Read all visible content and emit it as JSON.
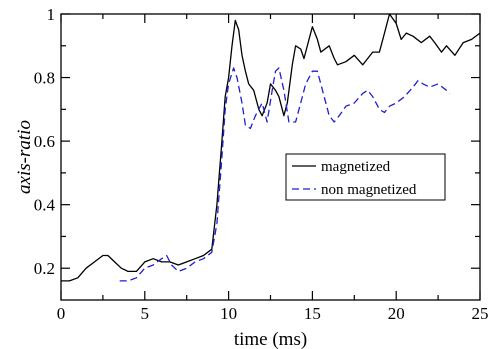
{
  "chart_data": {
    "type": "line",
    "xlabel": "time (ms)",
    "ylabel": "axis-ratio",
    "xlim": [
      0,
      25
    ],
    "ylim": [
      0.1,
      1.0
    ],
    "xticks": [
      0,
      5,
      10,
      15,
      20,
      25
    ],
    "yticks": [
      0.2,
      0.4,
      0.6,
      0.8,
      1
    ],
    "xtick_labels": [
      "0",
      "5",
      "10",
      "15",
      "20",
      "25"
    ],
    "ytick_labels": [
      "0.2",
      "0.4",
      "0.6",
      "0.8",
      "1"
    ],
    "grid": false,
    "legend_position": "center-right",
    "series": [
      {
        "name": "magnetized",
        "color": "#000000",
        "dash": "solid",
        "x": [
          0,
          0.5,
          1,
          1.5,
          2,
          2.5,
          2.8,
          3.2,
          3.6,
          4,
          4.5,
          5,
          5.5,
          6,
          6.5,
          7,
          7.5,
          8,
          8.5,
          9,
          9.3,
          9.6,
          9.8,
          10,
          10.2,
          10.4,
          10.6,
          10.8,
          11,
          11.2,
          11.5,
          11.8,
          12,
          12.3,
          12.5,
          12.8,
          13,
          13.3,
          13.5,
          13.8,
          14,
          14.3,
          14.5,
          14.8,
          15,
          15.3,
          15.5,
          16,
          16.3,
          16.5,
          17,
          17.5,
          18,
          18.3,
          18.6,
          19,
          19.3,
          19.6,
          20,
          20.3,
          20.6,
          21,
          21.5,
          22,
          22.3,
          22.7,
          23,
          23.5,
          24,
          24.5,
          25
        ],
        "y": [
          0.16,
          0.16,
          0.17,
          0.2,
          0.22,
          0.24,
          0.24,
          0.22,
          0.2,
          0.19,
          0.19,
          0.22,
          0.23,
          0.22,
          0.22,
          0.21,
          0.22,
          0.23,
          0.24,
          0.26,
          0.4,
          0.6,
          0.74,
          0.8,
          0.9,
          0.98,
          0.95,
          0.87,
          0.82,
          0.78,
          0.76,
          0.7,
          0.68,
          0.72,
          0.78,
          0.76,
          0.74,
          0.68,
          0.72,
          0.84,
          0.9,
          0.89,
          0.86,
          0.92,
          0.96,
          0.92,
          0.88,
          0.9,
          0.86,
          0.84,
          0.85,
          0.87,
          0.84,
          0.86,
          0.88,
          0.88,
          0.94,
          1.0,
          0.97,
          0.92,
          0.94,
          0.93,
          0.91,
          0.93,
          0.91,
          0.88,
          0.9,
          0.87,
          0.91,
          0.92,
          0.94
        ]
      },
      {
        "name": "non magnetized",
        "color": "#1f1fd0",
        "dash": "dashed",
        "x": [
          3.5,
          4,
          4.5,
          5,
          5.5,
          6,
          6.3,
          6.6,
          7,
          7.5,
          8,
          8.5,
          9,
          9.3,
          9.6,
          9.8,
          10,
          10.3,
          10.5,
          10.8,
          11,
          11.3,
          11.6,
          12,
          12.3,
          12.6,
          12.8,
          13,
          13.3,
          13.6,
          14,
          14.3,
          14.6,
          15,
          15.3,
          15.6,
          16,
          16.3,
          16.6,
          17,
          17.5,
          18,
          18.3,
          18.6,
          19,
          19.3,
          19.6,
          20,
          20.5,
          21,
          21.3,
          21.6,
          22,
          22.5,
          23,
          23.2
        ],
        "y": [
          0.16,
          0.16,
          0.17,
          0.2,
          0.21,
          0.23,
          0.24,
          0.21,
          0.19,
          0.2,
          0.22,
          0.23,
          0.25,
          0.34,
          0.55,
          0.7,
          0.78,
          0.83,
          0.8,
          0.72,
          0.65,
          0.64,
          0.68,
          0.72,
          0.66,
          0.76,
          0.82,
          0.83,
          0.76,
          0.66,
          0.66,
          0.72,
          0.78,
          0.82,
          0.82,
          0.76,
          0.68,
          0.66,
          0.68,
          0.71,
          0.72,
          0.75,
          0.76,
          0.74,
          0.7,
          0.69,
          0.71,
          0.72,
          0.74,
          0.77,
          0.79,
          0.78,
          0.77,
          0.78,
          0.76,
          0.75
        ]
      }
    ]
  }
}
